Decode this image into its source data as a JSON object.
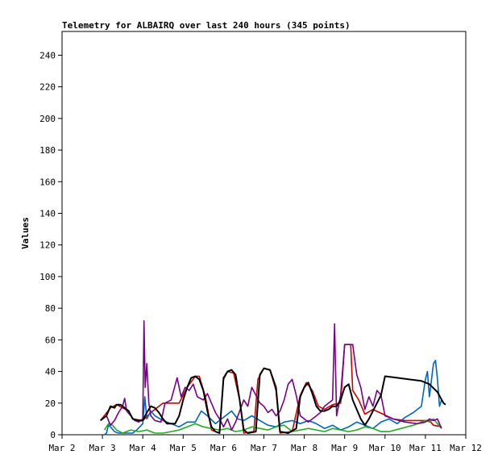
{
  "chart_data": {
    "type": "line",
    "title": "Telemetry for ALBAIRQ over last 240 hours (345 points)",
    "xlabel": "",
    "ylabel": "Values",
    "xlim": [
      0,
      10
    ],
    "ylim": [
      0,
      255
    ],
    "x_tick_labels": [
      "Mar 2",
      "Mar 3",
      "Mar 4",
      "Mar 5",
      "Mar 6",
      "Mar 7",
      "Mar 8",
      "Mar 9",
      "Mar 10",
      "Mar 11",
      "Mar 12"
    ],
    "y_ticks": [
      0,
      20,
      40,
      60,
      80,
      100,
      120,
      140,
      160,
      180,
      200,
      220,
      240
    ],
    "grid": false,
    "legend": "none",
    "series": [
      {
        "color": "#cc0000",
        "points": [
          [
            0.95,
            9
          ],
          [
            1.2,
            17
          ],
          [
            1.35,
            19
          ],
          [
            1.5,
            17
          ],
          [
            1.65,
            15
          ],
          [
            1.75,
            10
          ],
          [
            2.0,
            9
          ],
          [
            2.2,
            14
          ],
          [
            2.3,
            16
          ],
          [
            2.5,
            20
          ],
          [
            2.7,
            20
          ],
          [
            2.9,
            20
          ],
          [
            3.1,
            30
          ],
          [
            3.3,
            37
          ],
          [
            3.4,
            37
          ],
          [
            3.55,
            24
          ],
          [
            3.7,
            3
          ],
          [
            3.9,
            1
          ],
          [
            4.0,
            35
          ],
          [
            4.1,
            40
          ],
          [
            4.25,
            39
          ],
          [
            4.4,
            22
          ],
          [
            4.5,
            1
          ],
          [
            4.75,
            2
          ],
          [
            4.85,
            35
          ],
          [
            5.0,
            42
          ],
          [
            5.15,
            41
          ],
          [
            5.3,
            28
          ],
          [
            5.4,
            1
          ],
          [
            5.7,
            2
          ],
          [
            5.9,
            25
          ],
          [
            6.05,
            33
          ],
          [
            6.2,
            28
          ],
          [
            6.35,
            18
          ],
          [
            6.5,
            16
          ],
          [
            6.7,
            19
          ],
          [
            6.9,
            20
          ],
          [
            7.0,
            57
          ],
          [
            7.15,
            57
          ],
          [
            7.2,
            28
          ],
          [
            7.35,
            22
          ],
          [
            7.5,
            13
          ],
          [
            7.7,
            16
          ],
          [
            8.2,
            10
          ],
          [
            8.5,
            9
          ],
          [
            8.9,
            9
          ],
          [
            9.1,
            9
          ],
          [
            9.2,
            6
          ],
          [
            9.4,
            5
          ]
        ]
      },
      {
        "color": "#0066bb",
        "points": [
          [
            1.05,
            0
          ],
          [
            1.1,
            1
          ],
          [
            1.15,
            6
          ],
          [
            1.2,
            5
          ],
          [
            1.3,
            2
          ],
          [
            1.4,
            1
          ],
          [
            1.6,
            1
          ],
          [
            1.75,
            1
          ],
          [
            1.85,
            3
          ],
          [
            2.0,
            7
          ],
          [
            2.05,
            24
          ],
          [
            2.1,
            10
          ],
          [
            2.2,
            15
          ],
          [
            2.3,
            12
          ],
          [
            2.5,
            9
          ],
          [
            2.7,
            7
          ],
          [
            2.9,
            5
          ],
          [
            3.1,
            8
          ],
          [
            3.3,
            8
          ],
          [
            3.45,
            15
          ],
          [
            3.6,
            12
          ],
          [
            3.8,
            7
          ],
          [
            4.0,
            11
          ],
          [
            4.2,
            15
          ],
          [
            4.35,
            10
          ],
          [
            4.5,
            9
          ],
          [
            4.7,
            12
          ],
          [
            4.9,
            9
          ],
          [
            5.1,
            6
          ],
          [
            5.3,
            5
          ],
          [
            5.5,
            8
          ],
          [
            5.7,
            9
          ],
          [
            5.9,
            7
          ],
          [
            6.1,
            9
          ],
          [
            6.3,
            7
          ],
          [
            6.5,
            4
          ],
          [
            6.7,
            6
          ],
          [
            6.9,
            3
          ],
          [
            7.1,
            5
          ],
          [
            7.3,
            8
          ],
          [
            7.5,
            6
          ],
          [
            7.7,
            4
          ],
          [
            7.9,
            8
          ],
          [
            8.1,
            10
          ],
          [
            8.3,
            7
          ],
          [
            8.5,
            11
          ],
          [
            8.7,
            14
          ],
          [
            8.9,
            18
          ],
          [
            9.0,
            35
          ],
          [
            9.05,
            40
          ],
          [
            9.1,
            24
          ],
          [
            9.2,
            45
          ],
          [
            9.25,
            47
          ],
          [
            9.3,
            35
          ],
          [
            9.35,
            18
          ],
          [
            9.4,
            22
          ],
          [
            9.45,
            20
          ]
        ]
      },
      {
        "color": "#22aa22",
        "points": [
          [
            1.05,
            3
          ],
          [
            1.15,
            7
          ],
          [
            1.25,
            6
          ],
          [
            1.35,
            3
          ],
          [
            1.5,
            1
          ],
          [
            1.7,
            3
          ],
          [
            1.9,
            2
          ],
          [
            2.1,
            3
          ],
          [
            2.3,
            1
          ],
          [
            2.5,
            1
          ],
          [
            2.7,
            2
          ],
          [
            2.9,
            3
          ],
          [
            3.1,
            5
          ],
          [
            3.3,
            7
          ],
          [
            3.5,
            5
          ],
          [
            3.7,
            4
          ],
          [
            3.9,
            3
          ],
          [
            4.1,
            4
          ],
          [
            4.3,
            2
          ],
          [
            4.5,
            3
          ],
          [
            4.7,
            5
          ],
          [
            4.9,
            4
          ],
          [
            5.1,
            3
          ],
          [
            5.3,
            5
          ],
          [
            5.5,
            6
          ],
          [
            5.7,
            2
          ],
          [
            5.9,
            3
          ],
          [
            6.1,
            4
          ],
          [
            6.3,
            3
          ],
          [
            6.5,
            2
          ],
          [
            6.7,
            4
          ],
          [
            6.9,
            3
          ],
          [
            7.1,
            2
          ],
          [
            7.3,
            3
          ],
          [
            7.5,
            5
          ],
          [
            7.7,
            4
          ],
          [
            7.9,
            2
          ],
          [
            8.1,
            2
          ],
          [
            8.4,
            4
          ],
          [
            8.7,
            6
          ],
          [
            9.0,
            9
          ],
          [
            9.1,
            8
          ],
          [
            9.2,
            10
          ],
          [
            9.3,
            7
          ],
          [
            9.4,
            4
          ]
        ]
      },
      {
        "color": "#770088",
        "points": [
          [
            1.1,
            12
          ],
          [
            1.2,
            6
          ],
          [
            1.3,
            9
          ],
          [
            1.4,
            14
          ],
          [
            1.5,
            18
          ],
          [
            1.55,
            23
          ],
          [
            1.6,
            15
          ],
          [
            1.7,
            12
          ],
          [
            1.8,
            9
          ],
          [
            1.9,
            8
          ],
          [
            2.0,
            10
          ],
          [
            2.03,
            72
          ],
          [
            2.06,
            30
          ],
          [
            2.1,
            45
          ],
          [
            2.15,
            20
          ],
          [
            2.2,
            12
          ],
          [
            2.3,
            9
          ],
          [
            2.45,
            8
          ],
          [
            2.55,
            20
          ],
          [
            2.7,
            22
          ],
          [
            2.85,
            36
          ],
          [
            2.95,
            24
          ],
          [
            3.05,
            30
          ],
          [
            3.15,
            28
          ],
          [
            3.25,
            32
          ],
          [
            3.35,
            24
          ],
          [
            3.5,
            22
          ],
          [
            3.6,
            26
          ],
          [
            3.7,
            20
          ],
          [
            3.8,
            14
          ],
          [
            3.9,
            10
          ],
          [
            4.0,
            5
          ],
          [
            4.1,
            10
          ],
          [
            4.2,
            3
          ],
          [
            4.3,
            8
          ],
          [
            4.4,
            15
          ],
          [
            4.5,
            22
          ],
          [
            4.6,
            18
          ],
          [
            4.7,
            30
          ],
          [
            4.8,
            25
          ],
          [
            4.9,
            20
          ],
          [
            5.0,
            18
          ],
          [
            5.1,
            14
          ],
          [
            5.2,
            16
          ],
          [
            5.3,
            12
          ],
          [
            5.4,
            15
          ],
          [
            5.5,
            22
          ],
          [
            5.6,
            32
          ],
          [
            5.7,
            35
          ],
          [
            5.8,
            25
          ],
          [
            5.9,
            12
          ],
          [
            6.0,
            10
          ],
          [
            6.1,
            8
          ],
          [
            6.2,
            10
          ],
          [
            6.3,
            12
          ],
          [
            6.4,
            14
          ],
          [
            6.5,
            18
          ],
          [
            6.6,
            20
          ],
          [
            6.7,
            22
          ],
          [
            6.75,
            70
          ],
          [
            6.8,
            12
          ],
          [
            6.9,
            25
          ],
          [
            7.0,
            57
          ],
          [
            7.2,
            57
          ],
          [
            7.3,
            38
          ],
          [
            7.4,
            30
          ],
          [
            7.5,
            16
          ],
          [
            7.6,
            24
          ],
          [
            7.7,
            18
          ],
          [
            7.8,
            28
          ],
          [
            7.9,
            25
          ],
          [
            8.0,
            12
          ],
          [
            8.2,
            10
          ],
          [
            8.5,
            8
          ],
          [
            8.8,
            7
          ],
          [
            9.0,
            8
          ],
          [
            9.1,
            10
          ],
          [
            9.2,
            9
          ],
          [
            9.3,
            10
          ],
          [
            9.4,
            4
          ]
        ]
      },
      {
        "color": "#000000",
        "points": [
          [
            0.95,
            9
          ],
          [
            1.1,
            12
          ],
          [
            1.2,
            18
          ],
          [
            1.3,
            17
          ],
          [
            1.35,
            19
          ],
          [
            1.45,
            19
          ],
          [
            1.55,
            17
          ],
          [
            1.65,
            15
          ],
          [
            1.75,
            10
          ],
          [
            1.9,
            9
          ],
          [
            2.0,
            9
          ],
          [
            2.1,
            14
          ],
          [
            2.2,
            18
          ],
          [
            2.3,
            17
          ],
          [
            2.4,
            14
          ],
          [
            2.5,
            10
          ],
          [
            2.6,
            7
          ],
          [
            2.8,
            7
          ],
          [
            2.9,
            12
          ],
          [
            3.0,
            22
          ],
          [
            3.1,
            30
          ],
          [
            3.2,
            36
          ],
          [
            3.3,
            37
          ],
          [
            3.4,
            35
          ],
          [
            3.5,
            28
          ],
          [
            3.6,
            15
          ],
          [
            3.7,
            5
          ],
          [
            3.8,
            2
          ],
          [
            3.9,
            1
          ],
          [
            4.0,
            36
          ],
          [
            4.1,
            40
          ],
          [
            4.2,
            41
          ],
          [
            4.3,
            38
          ],
          [
            4.4,
            22
          ],
          [
            4.5,
            3
          ],
          [
            4.6,
            1
          ],
          [
            4.8,
            2
          ],
          [
            4.9,
            38
          ],
          [
            5.0,
            42
          ],
          [
            5.15,
            41
          ],
          [
            5.3,
            30
          ],
          [
            5.4,
            2
          ],
          [
            5.6,
            1
          ],
          [
            5.8,
            4
          ],
          [
            5.9,
            24
          ],
          [
            6.0,
            30
          ],
          [
            6.1,
            33
          ],
          [
            6.2,
            26
          ],
          [
            6.3,
            18
          ],
          [
            6.4,
            15
          ],
          [
            6.5,
            15
          ],
          [
            6.6,
            16
          ],
          [
            6.7,
            18
          ],
          [
            6.8,
            18
          ],
          [
            6.9,
            22
          ],
          [
            7.0,
            30
          ],
          [
            7.1,
            32
          ],
          [
            7.2,
            22
          ],
          [
            7.3,
            16
          ],
          [
            7.4,
            10
          ],
          [
            7.5,
            6
          ],
          [
            7.6,
            10
          ],
          [
            7.7,
            15
          ],
          [
            7.8,
            20
          ],
          [
            7.9,
            25
          ],
          [
            8.0,
            37
          ],
          [
            8.3,
            36
          ],
          [
            8.6,
            35
          ],
          [
            8.9,
            34
          ],
          [
            9.1,
            32
          ],
          [
            9.3,
            27
          ],
          [
            9.45,
            20
          ],
          [
            9.5,
            19
          ]
        ]
      }
    ]
  }
}
